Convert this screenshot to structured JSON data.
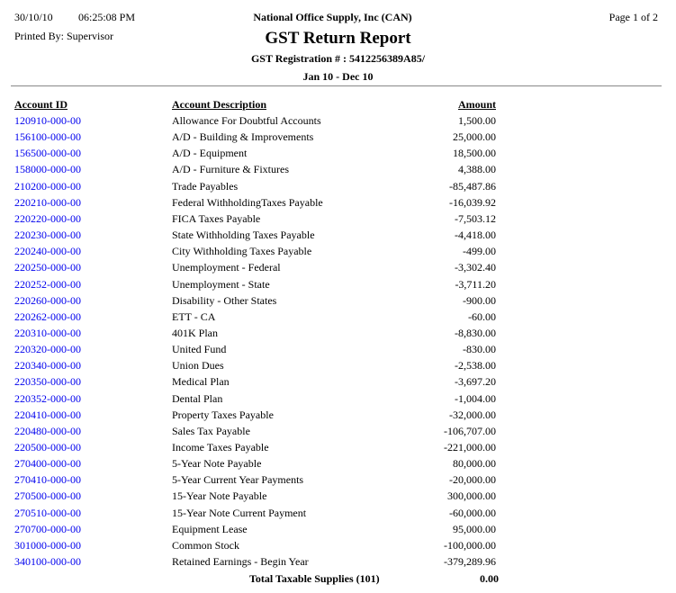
{
  "header": {
    "date": "30/10/10",
    "time": "06:25:08 PM",
    "printed_by": "Printed By: Supervisor",
    "company": "National Office Supply, Inc (CAN)",
    "page": "Page 1 of  2",
    "title": "GST Return Report",
    "registration": "GST Registration # : 5412256389A85/",
    "period": "Jan 10 - Dec 10"
  },
  "columns": {
    "id": "Account ID",
    "description": "Account Description",
    "amount": "Amount"
  },
  "rows": [
    {
      "id": "120910-000-00",
      "description": "Allowance For Doubtful Accounts",
      "amount": "1,500.00"
    },
    {
      "id": "156100-000-00",
      "description": "A/D - Building & Improvements",
      "amount": "25,000.00"
    },
    {
      "id": "156500-000-00",
      "description": "A/D - Equipment",
      "amount": "18,500.00"
    },
    {
      "id": "158000-000-00",
      "description": "A/D - Furniture & Fixtures",
      "amount": "4,388.00"
    },
    {
      "id": "210200-000-00",
      "description": "Trade Payables",
      "amount": "-85,487.86"
    },
    {
      "id": "220210-000-00",
      "description": "Federal WithholdingTaxes Payable",
      "amount": "-16,039.92"
    },
    {
      "id": "220220-000-00",
      "description": "FICA Taxes Payable",
      "amount": "-7,503.12"
    },
    {
      "id": "220230-000-00",
      "description": "State Withholding Taxes Payable",
      "amount": "-4,418.00"
    },
    {
      "id": "220240-000-00",
      "description": "City Withholding Taxes Payable",
      "amount": "-499.00"
    },
    {
      "id": "220250-000-00",
      "description": "Unemployment - Federal",
      "amount": "-3,302.40"
    },
    {
      "id": "220252-000-00",
      "description": "Unemployment - State",
      "amount": "-3,711.20"
    },
    {
      "id": "220260-000-00",
      "description": "Disability - Other States",
      "amount": "-900.00"
    },
    {
      "id": "220262-000-00",
      "description": "ETT - CA",
      "amount": "-60.00"
    },
    {
      "id": "220310-000-00",
      "description": "401K Plan",
      "amount": "-8,830.00"
    },
    {
      "id": "220320-000-00",
      "description": "United Fund",
      "amount": "-830.00"
    },
    {
      "id": "220340-000-00",
      "description": "Union Dues",
      "amount": "-2,538.00"
    },
    {
      "id": "220350-000-00",
      "description": "Medical Plan",
      "amount": "-3,697.20"
    },
    {
      "id": "220352-000-00",
      "description": "Dental Plan",
      "amount": "-1,004.00"
    },
    {
      "id": "220410-000-00",
      "description": "Property Taxes Payable",
      "amount": "-32,000.00"
    },
    {
      "id": "220480-000-00",
      "description": "Sales Tax Payable",
      "amount": "-106,707.00"
    },
    {
      "id": "220500-000-00",
      "description": "Income Taxes Payable",
      "amount": "-221,000.00"
    },
    {
      "id": "270400-000-00",
      "description": "5-Year Note Payable",
      "amount": "80,000.00"
    },
    {
      "id": "270410-000-00",
      "description": "5-Year Current Year Payments",
      "amount": "-20,000.00"
    },
    {
      "id": "270500-000-00",
      "description": "15-Year Note Payable",
      "amount": "300,000.00"
    },
    {
      "id": "270510-000-00",
      "description": "15-Year Note Current Payment",
      "amount": "-60,000.00"
    },
    {
      "id": "270700-000-00",
      "description": "Equipment Lease",
      "amount": "95,000.00"
    },
    {
      "id": "301000-000-00",
      "description": "Common Stock",
      "amount": "-100,000.00"
    },
    {
      "id": "340100-000-00",
      "description": "Retained Earnings - Begin Year",
      "amount": "-379,289.96"
    }
  ],
  "total": {
    "label": "Total Taxable Supplies  (101)",
    "amount": "0.00"
  },
  "colors": {
    "link": "#0000ee",
    "rule": "#888888"
  }
}
